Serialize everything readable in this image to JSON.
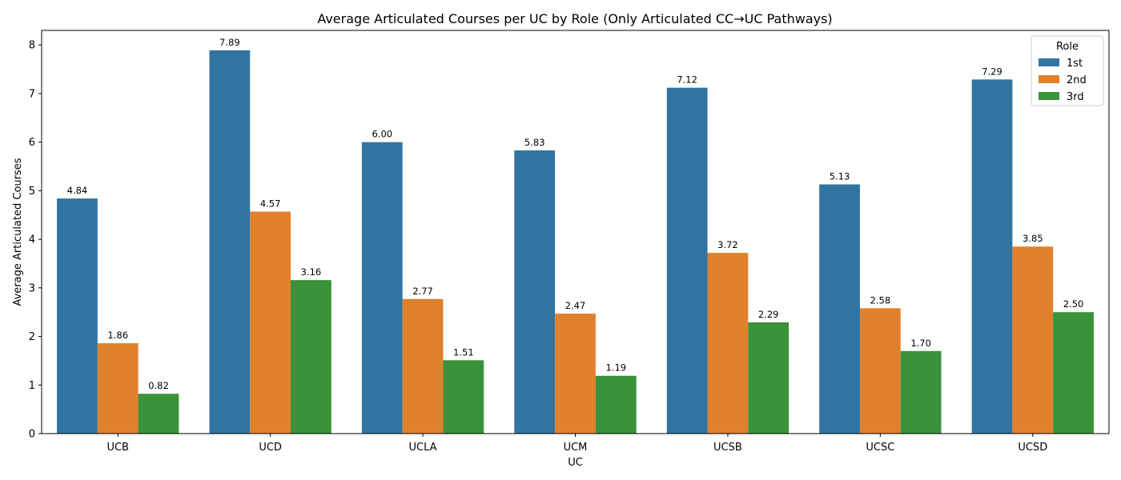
{
  "chart_data": {
    "type": "bar",
    "title": "Average Articulated Courses per UC by Role (Only Articulated CC→UC Pathways)",
    "xlabel": "UC",
    "ylabel": "Average Articulated Courses",
    "categories": [
      "UCB",
      "UCD",
      "UCLA",
      "UCM",
      "UCSB",
      "UCSC",
      "UCSD"
    ],
    "series": [
      {
        "name": "1st",
        "color": "#3274a1",
        "values": [
          4.84,
          7.89,
          6.0,
          5.83,
          7.12,
          5.13,
          7.29
        ],
        "labels": [
          "4.84",
          "7.89",
          "6.00",
          "5.83",
          "7.12",
          "5.13",
          "7.29"
        ]
      },
      {
        "name": "2nd",
        "color": "#e1812c",
        "values": [
          1.86,
          4.57,
          2.77,
          2.47,
          3.72,
          2.58,
          3.85
        ],
        "labels": [
          "1.86",
          "4.57",
          "2.77",
          "2.47",
          "3.72",
          "2.58",
          "3.85"
        ]
      },
      {
        "name": "3rd",
        "color": "#3a923a",
        "values": [
          0.82,
          3.16,
          1.51,
          1.19,
          2.29,
          1.7,
          2.5
        ],
        "labels": [
          "0.82",
          "3.16",
          "1.51",
          "1.19",
          "2.29",
          "1.70",
          "2.50"
        ]
      }
    ],
    "ylim": [
      0,
      8.3
    ],
    "yticks": [
      "0",
      "1",
      "2",
      "3",
      "4",
      "5",
      "6",
      "7",
      "8"
    ],
    "grid": false,
    "legend": {
      "title": "Role",
      "placement": "top-right"
    }
  }
}
